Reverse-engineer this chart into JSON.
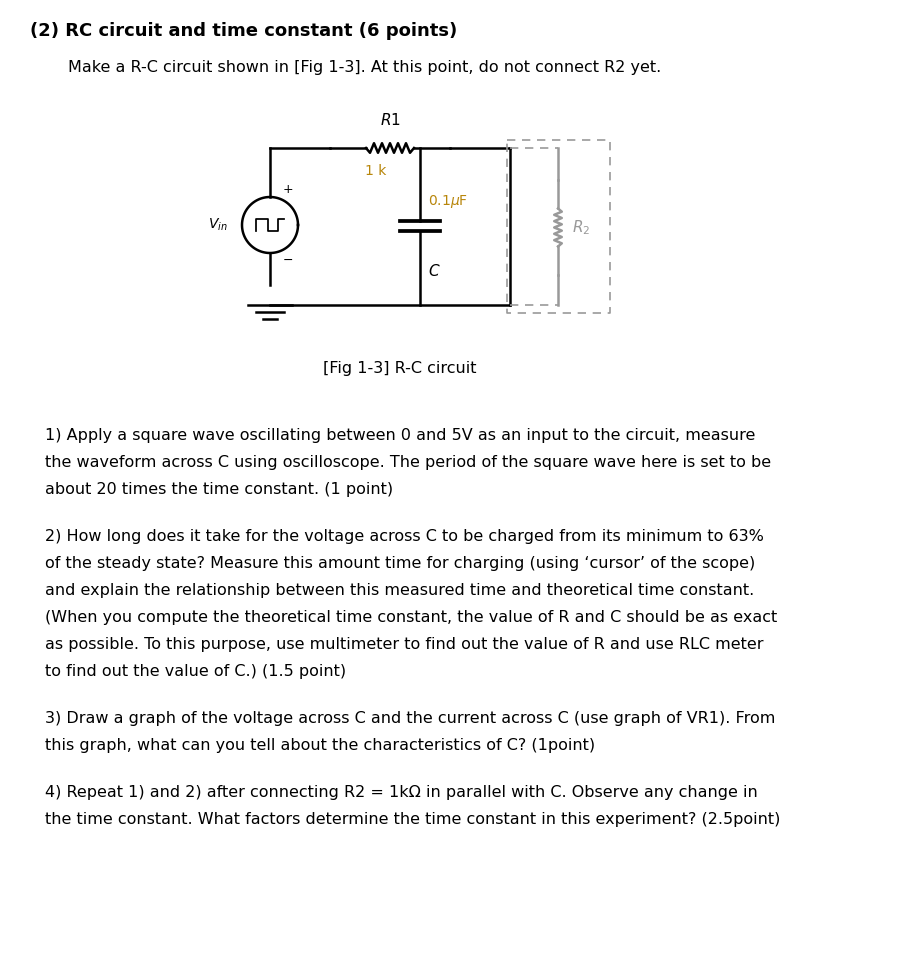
{
  "title": "(2) RC circuit and time constant (6 points)",
  "intro_text": "Make a R-C circuit shown in [Fig 1-3]. At this point, do not connect R2 yet.",
  "fig_caption": "[Fig 1-3] R-C circuit",
  "paragraph1_lines": [
    "1) Apply a square wave oscillating between 0 and 5V as an input to the circuit, measure",
    "the waveform across C using oscilloscope. The period of the square wave here is set to be",
    "about 20 times the time constant. (1 point)"
  ],
  "paragraph2_lines": [
    "2) How long does it take for the voltage across C to be charged from its minimum to 63%",
    "of the steady state? Measure this amount time for charging (using ‘cursor’ of the scope)",
    "and explain the relationship between this measured time and theoretical time constant.",
    "(When you compute the theoretical time constant, the value of R and C should be as exact",
    "as possible. To this purpose, use multimeter to find out the value of R and use RLC meter",
    "to find out the value of C.) (1.5 point)"
  ],
  "paragraph3_lines": [
    "3) Draw a graph of the voltage across C and the current across C (use graph of VR1). From",
    "this graph, what can you tell about the characteristics of C? (1point)"
  ],
  "paragraph4_lines": [
    "4) Repeat 1) and 2) after connecting R2 = 1kΩ in parallel with C. Observe any change in",
    "the time constant. What factors determine the time constant in this experiment? (2.5point)"
  ],
  "background_color": "#ffffff",
  "text_color": "#000000",
  "circuit_line_color": "#000000",
  "dashed_line_color": "#999999",
  "r2_resistor_color": "#999999",
  "label_1k_color": "#b8860b",
  "label_01uf_color": "#b8860b",
  "title_fontsize": 13,
  "body_fontsize": 11.5,
  "fig_width": 9.0,
  "fig_height": 9.72,
  "dpi": 100
}
